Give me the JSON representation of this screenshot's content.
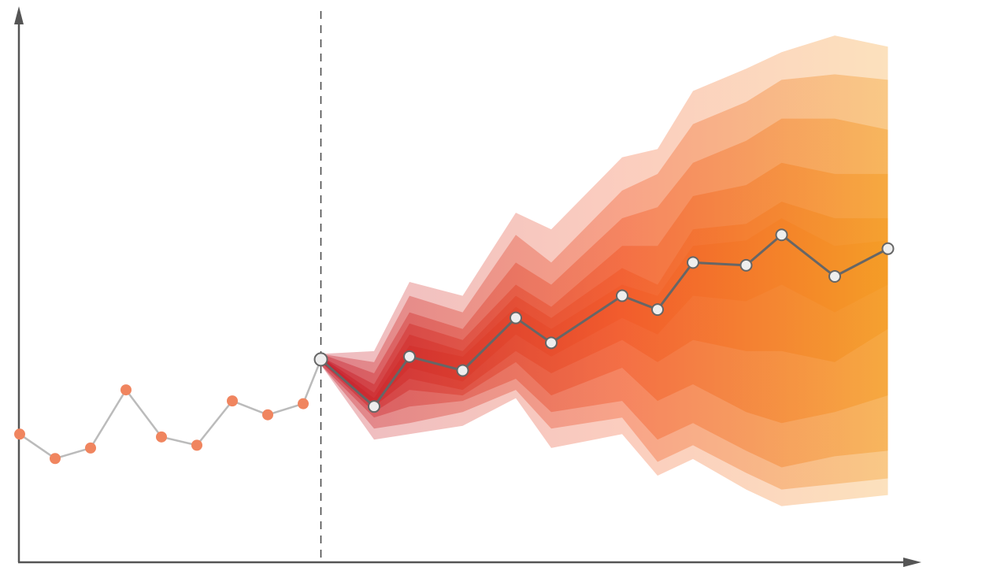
{
  "chart_data": {
    "type": "line",
    "title": "",
    "xlabel": "",
    "ylabel": "",
    "grid": false,
    "legend": "none",
    "xlim": [
      0,
      25
    ],
    "ylim": [
      0,
      100
    ],
    "history": {
      "x": [
        0,
        1,
        2,
        3,
        4,
        5,
        6,
        7,
        8
      ],
      "y": [
        23,
        18.6,
        20.5,
        31,
        22.5,
        21,
        29,
        26.5,
        28.5
      ]
    },
    "forecast_origin": {
      "x": 8.5,
      "y": 36.5
    },
    "forecast": {
      "x": [
        8.5,
        10,
        11,
        12.5,
        14,
        15,
        17,
        18,
        19,
        20.5,
        21.5,
        23,
        24.5
      ],
      "y": [
        36.5,
        28,
        37,
        34.5,
        44,
        39.5,
        48,
        45.5,
        54,
        53.5,
        59,
        51.5,
        56.5
      ]
    },
    "fan_bands": {
      "x": [
        8.5,
        10,
        11,
        12.5,
        14,
        15,
        17,
        18,
        19,
        20.5,
        21.5,
        23,
        24.5
      ],
      "levels": [
        {
          "name": "",
          "upper": [
            37.5,
            38,
            50.5,
            48,
            63,
            60,
            73,
            74.5,
            85,
            89,
            92,
            95,
            93
          ],
          "lower": [
            35.5,
            22,
            23,
            24.5,
            29.5,
            20.5,
            23,
            15.5,
            18.5,
            13,
            10,
            11,
            12
          ]
        },
        {
          "name": "",
          "upper": [
            37.5,
            36,
            48,
            45,
            59,
            54,
            67,
            70,
            79,
            83,
            87,
            88,
            87
          ],
          "lower": [
            35.5,
            24,
            25,
            27,
            31,
            24,
            26,
            18,
            21,
            16,
            13,
            14,
            15
          ]
        },
        {
          "name": "",
          "upper": [
            37.5,
            34,
            45,
            42,
            54,
            50,
            62,
            64,
            72,
            76,
            80,
            80,
            78
          ],
          "lower": [
            35.5,
            26,
            28,
            29,
            33,
            27,
            29,
            22,
            25,
            20,
            17,
            19,
            20
          ]
        },
        {
          "name": "",
          "upper": [
            37,
            32,
            43,
            40,
            50,
            46,
            57,
            57,
            66,
            68,
            72,
            70,
            70
          ],
          "lower": [
            36,
            27,
            31,
            30,
            36,
            30,
            35,
            29,
            32,
            27,
            25,
            27,
            30
          ]
        },
        {
          "name": "",
          "upper": [
            37,
            30.5,
            41,
            38,
            48,
            44,
            53,
            50,
            60,
            61,
            65,
            62,
            62
          ],
          "lower": [
            36,
            28,
            33,
            31,
            38,
            34,
            40,
            36,
            40,
            38,
            38,
            36,
            42
          ]
        },
        {
          "name": "",
          "upper": [
            36.8,
            29.5,
            39,
            37,
            46,
            42,
            50,
            48,
            57,
            58,
            62,
            57,
            58
          ],
          "lower": [
            36.2,
            28.5,
            35,
            32.5,
            41,
            37,
            44,
            41,
            48,
            47,
            50,
            45,
            50
          ]
        }
      ]
    },
    "colors": {
      "axis": "#555555",
      "history_line": "#bbbbbb",
      "history_point": "#f0855f",
      "forecast_line": "#666666",
      "forecast_point_fill": "#eeeeee",
      "divider": "#444444",
      "fan_start": "#c41e2e",
      "fan_mid": "#f25a2a",
      "fan_end": "#f5a623"
    }
  }
}
